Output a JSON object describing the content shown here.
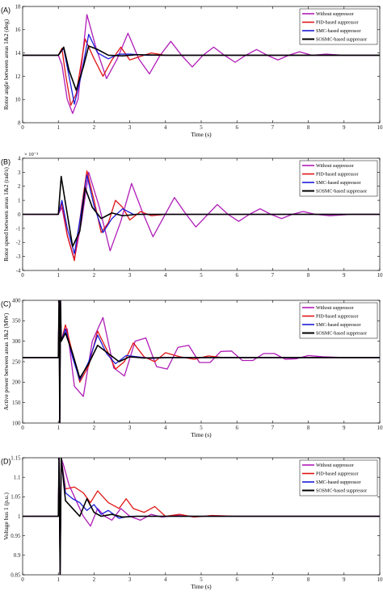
{
  "chart_data": [
    {
      "panel": "(A)",
      "type": "line",
      "xlabel": "Time (s)",
      "ylabel": "Rotor angle between areas 1&2 (deg)",
      "xlim": [
        0,
        10
      ],
      "ylim": [
        8,
        18
      ],
      "xticks": [
        "0",
        "1",
        "2",
        "3",
        "4",
        "5",
        "6",
        "7",
        "8",
        "9",
        "10"
      ],
      "yticks": [
        "8",
        "10",
        "12",
        "14",
        "16",
        "18"
      ],
      "exponent": "",
      "legend_position": "top-right",
      "series": [
        {
          "name": "Without suppressor",
          "color": "#b01cb8",
          "x": [
            0,
            1.0,
            1.1,
            1.25,
            1.4,
            1.55,
            1.8,
            2.05,
            2.35,
            2.65,
            2.95,
            3.25,
            3.55,
            3.85,
            4.15,
            4.45,
            4.75,
            5.05,
            5.35,
            5.65,
            5.95,
            6.25,
            6.55,
            6.85,
            7.15,
            7.45,
            7.75,
            8.1,
            8.5,
            9,
            10
          ],
          "y": [
            13.8,
            13.8,
            13.0,
            10.0,
            8.8,
            10.0,
            17.3,
            14.5,
            11.8,
            13.5,
            15.7,
            13.5,
            12.2,
            13.8,
            15.0,
            13.8,
            12.8,
            13.8,
            14.5,
            13.8,
            13.2,
            13.8,
            14.3,
            13.8,
            13.4,
            13.8,
            14.1,
            13.8,
            13.9,
            13.8,
            13.8
          ]
        },
        {
          "name": "PID-based suppressor",
          "color": "#e01515",
          "x": [
            0,
            1.0,
            1.1,
            1.2,
            1.35,
            1.5,
            1.75,
            2.0,
            2.25,
            2.5,
            2.75,
            3.0,
            3.3,
            3.6,
            4.0,
            4.5,
            10
          ],
          "y": [
            13.8,
            13.8,
            14.4,
            12.2,
            9.5,
            10.5,
            15.2,
            13.5,
            12.0,
            13.4,
            14.5,
            13.4,
            13.7,
            14.0,
            13.8,
            13.8,
            13.8
          ]
        },
        {
          "name": "SMC-based suppressor",
          "color": "#1c1cd8",
          "x": [
            0,
            1.0,
            1.15,
            1.3,
            1.45,
            1.65,
            1.85,
            2.1,
            2.4,
            2.7,
            3.0,
            3.5,
            10
          ],
          "y": [
            13.8,
            13.8,
            14.4,
            12.0,
            9.6,
            12.2,
            15.6,
            14.0,
            13.5,
            13.9,
            13.9,
            13.8,
            13.8
          ]
        },
        {
          "name": "SOSMC-based suppressor",
          "color": "#000000",
          "x": [
            0,
            1.0,
            1.15,
            1.3,
            1.5,
            1.7,
            1.85,
            2.1,
            2.4,
            2.8,
            3.2,
            4.0,
            10
          ],
          "y": [
            13.8,
            13.8,
            14.5,
            12.5,
            10.8,
            12.8,
            14.6,
            14.3,
            13.8,
            13.75,
            13.85,
            13.8,
            13.8
          ]
        }
      ]
    },
    {
      "panel": "(B)",
      "type": "line",
      "xlabel": "",
      "ylabel": "Rotor speed between areas 1&2 (rad/s)",
      "xlim": [
        0,
        10
      ],
      "ylim": [
        -4,
        4
      ],
      "xticks": [
        "0",
        "1",
        "2",
        "3",
        "4",
        "5",
        "6",
        "7",
        "8",
        "9",
        "10"
      ],
      "yticks": [
        "-4",
        "-3",
        "-2",
        "-1",
        "0",
        "1",
        "2",
        "3",
        "4"
      ],
      "exponent": "× 10⁻³",
      "legend_position": "top-right",
      "series": [
        {
          "name": "Without suppressor",
          "color": "#b01cb8",
          "x": [
            0,
            1.0,
            1.1,
            1.25,
            1.45,
            1.65,
            1.85,
            2.15,
            2.45,
            2.75,
            3.05,
            3.35,
            3.65,
            3.95,
            4.25,
            4.55,
            4.85,
            5.15,
            5.45,
            5.75,
            6.05,
            6.35,
            6.65,
            6.95,
            7.25,
            7.55,
            7.85,
            8.2,
            8.6,
            9.2,
            10
          ],
          "y": [
            0,
            0,
            0.5,
            -1.5,
            -3.2,
            -0.5,
            3.0,
            0.5,
            -2.6,
            -0.5,
            2.2,
            0.2,
            -1.6,
            -0.2,
            1.2,
            0.1,
            -0.9,
            -0.1,
            0.7,
            0,
            -0.5,
            0,
            0.4,
            0,
            -0.3,
            0,
            0.2,
            0,
            -0.1,
            0,
            0
          ]
        },
        {
          "name": "PID-based suppressor",
          "color": "#e01515",
          "x": [
            0,
            1.0,
            1.1,
            1.25,
            1.45,
            1.65,
            1.8,
            2.0,
            2.2,
            2.4,
            2.6,
            2.8,
            3.0,
            3.3,
            3.6,
            4.0,
            4.5,
            10
          ],
          "y": [
            0,
            0,
            0.8,
            -1.5,
            -3.3,
            0.5,
            3.1,
            1.0,
            -1.3,
            -0.6,
            1.0,
            0.5,
            -0.4,
            0.2,
            -0.1,
            0,
            0,
            0
          ]
        },
        {
          "name": "SMC-based suppressor",
          "color": "#1c1cd8",
          "x": [
            0,
            1.0,
            1.1,
            1.25,
            1.45,
            1.65,
            1.8,
            2.0,
            2.25,
            2.5,
            2.8,
            3.1,
            3.5,
            10
          ],
          "y": [
            0,
            0,
            1.0,
            -1.0,
            -2.8,
            0.3,
            2.8,
            0.6,
            -1.3,
            -0.3,
            0.4,
            0,
            0,
            0
          ]
        },
        {
          "name": "SOSMC-based suppressor",
          "color": "#000000",
          "x": [
            0,
            1.0,
            1.08,
            1.2,
            1.4,
            1.6,
            1.75,
            1.95,
            2.2,
            2.5,
            2.8,
            3.2,
            4.0,
            10
          ],
          "y": [
            0,
            0,
            2.7,
            0.8,
            -2.3,
            -1.2,
            1.9,
            0.5,
            -0.3,
            0.1,
            -0.1,
            0,
            0,
            0
          ]
        }
      ]
    },
    {
      "panel": "(C)",
      "type": "line",
      "xlabel": "Time (s)",
      "ylabel": "Active power between areas 1&2 (MW)",
      "xlim": [
        0,
        10
      ],
      "ylim": [
        100,
        400
      ],
      "xticks": [
        "0",
        "1",
        "2",
        "3",
        "4",
        "5",
        "6",
        "7",
        "8",
        "9",
        "10"
      ],
      "yticks": [
        "100",
        "150",
        "200",
        "250",
        "300",
        "350",
        "400"
      ],
      "exponent": "",
      "legend_position": "top-right",
      "series": [
        {
          "name": "Without suppressor",
          "color": "#b01cb8",
          "x": [
            0,
            1.0,
            1.02,
            1.04,
            1.06,
            1.08,
            1.25,
            1.45,
            1.7,
            1.95,
            2.25,
            2.55,
            2.85,
            3.15,
            3.45,
            3.75,
            4.05,
            4.35,
            4.65,
            4.95,
            5.25,
            5.55,
            5.85,
            6.15,
            6.45,
            6.75,
            7.05,
            7.35,
            7.65,
            8.0,
            8.4,
            9.0,
            10
          ],
          "y": [
            260,
            260,
            400,
            100,
            400,
            300,
            330,
            190,
            165,
            300,
            358,
            235,
            215,
            300,
            308,
            238,
            232,
            285,
            290,
            248,
            248,
            275,
            276,
            253,
            253,
            270,
            270,
            256,
            257,
            265,
            262,
            260,
            260
          ]
        },
        {
          "name": "PID-based suppressor",
          "color": "#e01515",
          "x": [
            0,
            1.0,
            1.02,
            1.04,
            1.06,
            1.08,
            1.2,
            1.4,
            1.6,
            1.85,
            2.1,
            2.35,
            2.6,
            2.85,
            3.1,
            3.4,
            3.7,
            4.0,
            4.4,
            4.8,
            5.2,
            5.6,
            10
          ],
          "y": [
            260,
            260,
            400,
            100,
            400,
            300,
            340,
            270,
            200,
            240,
            325,
            280,
            232,
            250,
            296,
            262,
            250,
            272,
            262,
            256,
            264,
            260,
            260
          ]
        },
        {
          "name": "SMC-based suppressor",
          "color": "#1c1cd8",
          "x": [
            0,
            1.0,
            1.02,
            1.04,
            1.06,
            1.08,
            1.2,
            1.4,
            1.6,
            1.85,
            2.1,
            2.35,
            2.6,
            2.9,
            3.2,
            3.6,
            4.0,
            10
          ],
          "y": [
            260,
            260,
            400,
            100,
            400,
            300,
            330,
            260,
            205,
            250,
            315,
            270,
            245,
            265,
            262,
            258,
            260,
            260
          ]
        },
        {
          "name": "SOSMC-based suppressor",
          "color": "#000000",
          "x": [
            0,
            1.0,
            1.02,
            1.04,
            1.06,
            1.08,
            1.2,
            1.4,
            1.6,
            1.85,
            2.1,
            2.4,
            2.7,
            3.0,
            3.4,
            4.0,
            10
          ],
          "y": [
            260,
            260,
            400,
            100,
            400,
            300,
            320,
            270,
            210,
            245,
            290,
            270,
            250,
            262,
            259,
            260,
            260
          ]
        }
      ]
    },
    {
      "panel": "(D)",
      "type": "line",
      "xlabel": "Time (s)",
      "ylabel": "Voltage bus 1 (p.u.)",
      "xlim": [
        0,
        10
      ],
      "ylim": [
        0.85,
        1.15
      ],
      "xticks": [
        "0",
        "1",
        "2",
        "3",
        "4",
        "5",
        "6",
        "7",
        "8",
        "9",
        "10"
      ],
      "yticks": [
        "0.85",
        "0.9",
        "0.95",
        "1",
        "1.05",
        "1.1",
        "1.15"
      ],
      "exponent": "",
      "legend_position": "top-right",
      "series": [
        {
          "name": "Without suppressor",
          "color": "#b01cb8",
          "x": [
            0,
            1.0,
            1.02,
            1.05,
            1.08,
            1.15,
            1.3,
            1.5,
            1.7,
            1.9,
            2.1,
            2.3,
            2.5,
            2.75,
            3.0,
            3.3,
            3.6,
            3.9,
            4.3,
            4.8,
            5.5,
            10
          ],
          "y": [
            1,
            1,
            1.15,
            0.85,
            1.15,
            1.13,
            1.08,
            1.04,
            1.0,
            0.975,
            1.02,
            1.0,
            0.99,
            1.02,
            1.0,
            0.99,
            1.005,
            0.998,
            1.002,
            1.0,
            1.0,
            1.0
          ]
        },
        {
          "name": "PID-based suppressor",
          "color": "#e01515",
          "x": [
            0,
            1.0,
            1.02,
            1.05,
            1.08,
            1.2,
            1.45,
            1.7,
            1.9,
            2.1,
            2.4,
            2.7,
            2.9,
            3.1,
            3.4,
            3.7,
            4.0,
            4.4,
            4.8,
            5.3,
            6.0,
            10
          ],
          "y": [
            1,
            1,
            1.15,
            0.85,
            1.15,
            1.07,
            1.075,
            1.06,
            1.035,
            1.065,
            1.035,
            1.02,
            1.045,
            1.02,
            1.01,
            1.025,
            1.0,
            1.005,
            0.998,
            1.002,
            1.0,
            1.0
          ]
        },
        {
          "name": "SMC-based suppressor",
          "color": "#1c1cd8",
          "x": [
            0,
            1.0,
            1.02,
            1.05,
            1.08,
            1.2,
            1.4,
            1.6,
            1.8,
            2.0,
            2.2,
            2.4,
            2.7,
            3.0,
            3.5,
            4.0,
            10
          ],
          "y": [
            1,
            1,
            1.15,
            0.85,
            1.15,
            1.06,
            1.045,
            1.035,
            1.015,
            1.03,
            1.005,
            1.015,
            0.995,
            1.0,
            1.0,
            1.0,
            1.0
          ]
        },
        {
          "name": "SOSMC-based suppressor",
          "color": "#000000",
          "x": [
            0,
            1.0,
            1.02,
            1.05,
            1.08,
            1.2,
            1.4,
            1.6,
            1.8,
            2.0,
            2.2,
            2.5,
            2.8,
            3.2,
            4.0,
            10
          ],
          "y": [
            1,
            1,
            1.15,
            0.85,
            1.15,
            1.04,
            1.02,
            1.0,
            1.045,
            1.01,
            1.0,
            1.005,
            0.998,
            1.0,
            1.0,
            1.0
          ]
        }
      ]
    }
  ]
}
